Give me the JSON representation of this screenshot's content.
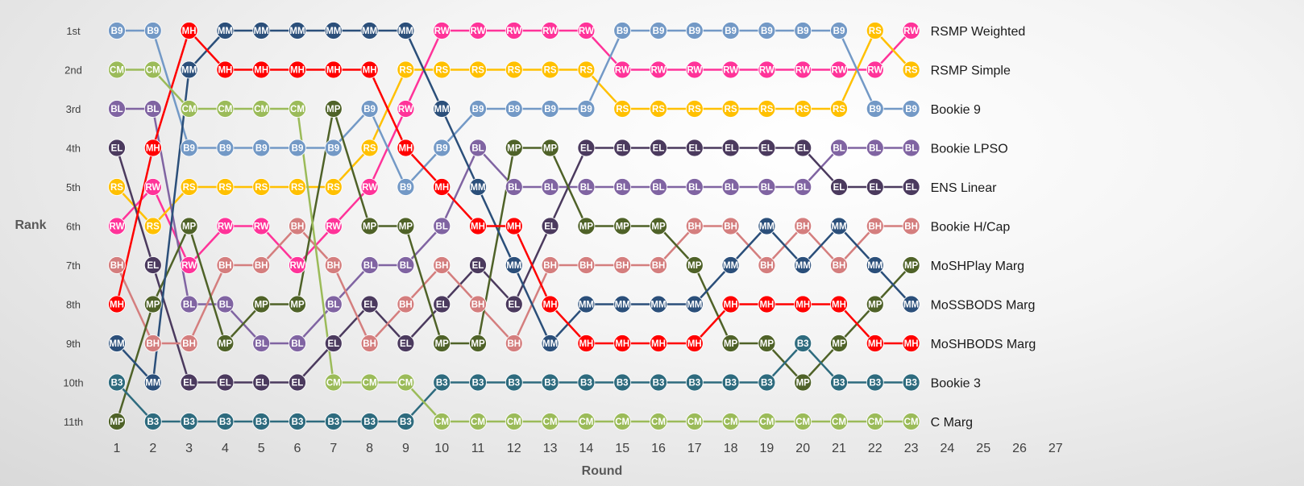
{
  "chart_data": {
    "type": "line",
    "xlabel": "Round",
    "ylabel": "Rank",
    "x_ticks": [
      "1",
      "2",
      "3",
      "4",
      "5",
      "6",
      "7",
      "8",
      "9",
      "10",
      "11",
      "12",
      "13",
      "14",
      "15",
      "16",
      "17",
      "18",
      "19",
      "20",
      "21",
      "22",
      "23",
      "24",
      "25",
      "26",
      "27"
    ],
    "y_ticks": [
      "1st",
      "2nd",
      "3rd",
      "4th",
      "5th",
      "6th",
      "7th",
      "8th",
      "9th",
      "10th",
      "11th"
    ],
    "xlim": [
      1,
      27
    ],
    "ylim": [
      1,
      11
    ],
    "y_inverted": true,
    "grid": false,
    "legend": "right-end labels",
    "series": [
      {
        "name": "RSMP Weighted",
        "abbr": "RW",
        "color": "#ff3399",
        "values": [
          6,
          5,
          7,
          6,
          6,
          7,
          6,
          5,
          3,
          1,
          1,
          1,
          1,
          1,
          2,
          2,
          2,
          2,
          2,
          2,
          2,
          2,
          1
        ]
      },
      {
        "name": "RSMP Simple",
        "abbr": "RS",
        "color": "#ffc000",
        "values": [
          5,
          6,
          5,
          5,
          5,
          5,
          5,
          4,
          2,
          2,
          2,
          2,
          2,
          2,
          3,
          3,
          3,
          3,
          3,
          3,
          3,
          1,
          2
        ]
      },
      {
        "name": "Bookie 9",
        "abbr": "B9",
        "color": "#7399c6",
        "values": [
          1,
          1,
          4,
          4,
          4,
          4,
          4,
          3,
          5,
          4,
          3,
          3,
          3,
          3,
          1,
          1,
          1,
          1,
          1,
          1,
          1,
          3,
          3
        ]
      },
      {
        "name": "Bookie LPSO",
        "abbr": "BL",
        "color": "#8064a2",
        "values": [
          3,
          3,
          8,
          8,
          9,
          9,
          8,
          7,
          7,
          6,
          4,
          5,
          5,
          5,
          5,
          5,
          5,
          5,
          5,
          5,
          4,
          4,
          4
        ]
      },
      {
        "name": "ENS Linear",
        "abbr": "EL",
        "color": "#4b3a5e",
        "values": [
          4,
          7,
          10,
          10,
          10,
          10,
          9,
          8,
          9,
          8,
          7,
          8,
          6,
          4,
          4,
          4,
          4,
          4,
          4,
          4,
          5,
          5,
          5
        ]
      },
      {
        "name": "Bookie H/Cap",
        "abbr": "BH",
        "color": "#d47e7e",
        "values": [
          7,
          9,
          9,
          7,
          7,
          6,
          7,
          9,
          8,
          7,
          8,
          9,
          7,
          7,
          7,
          7,
          6,
          6,
          7,
          6,
          7,
          6,
          6
        ]
      },
      {
        "name": "MoSHPlay Marg",
        "abbr": "MP",
        "color": "#4f6228",
        "values": [
          11,
          8,
          6,
          9,
          8,
          8,
          3,
          6,
          6,
          9,
          9,
          4,
          4,
          6,
          6,
          6,
          7,
          9,
          9,
          10,
          9,
          8,
          7
        ]
      },
      {
        "name": "MoSSBODS Marg",
        "abbr": "MM",
        "color": "#2b4f7a",
        "values": [
          9,
          10,
          2,
          1,
          1,
          1,
          1,
          1,
          1,
          3,
          5,
          7,
          9,
          8,
          8,
          8,
          8,
          7,
          6,
          7,
          6,
          7,
          8
        ]
      },
      {
        "name": "MoSHBODS Marg",
        "abbr": "MH",
        "color": "#ff0000",
        "values": [
          8,
          4,
          1,
          2,
          2,
          2,
          2,
          2,
          4,
          5,
          6,
          6,
          8,
          9,
          9,
          9,
          9,
          8,
          8,
          8,
          8,
          9,
          9
        ]
      },
      {
        "name": "Bookie 3",
        "abbr": "B3",
        "color": "#2e6b7e",
        "values": [
          10,
          11,
          11,
          11,
          11,
          11,
          11,
          11,
          11,
          10,
          10,
          10,
          10,
          10,
          10,
          10,
          10,
          10,
          10,
          9,
          10,
          10,
          10
        ]
      },
      {
        "name": "C Marg",
        "abbr": "CM",
        "color": "#9bbb59",
        "values": [
          2,
          2,
          3,
          3,
          3,
          3,
          10,
          10,
          10,
          11,
          11,
          11,
          11,
          11,
          11,
          11,
          11,
          11,
          11,
          11,
          11,
          11,
          11
        ]
      }
    ]
  }
}
